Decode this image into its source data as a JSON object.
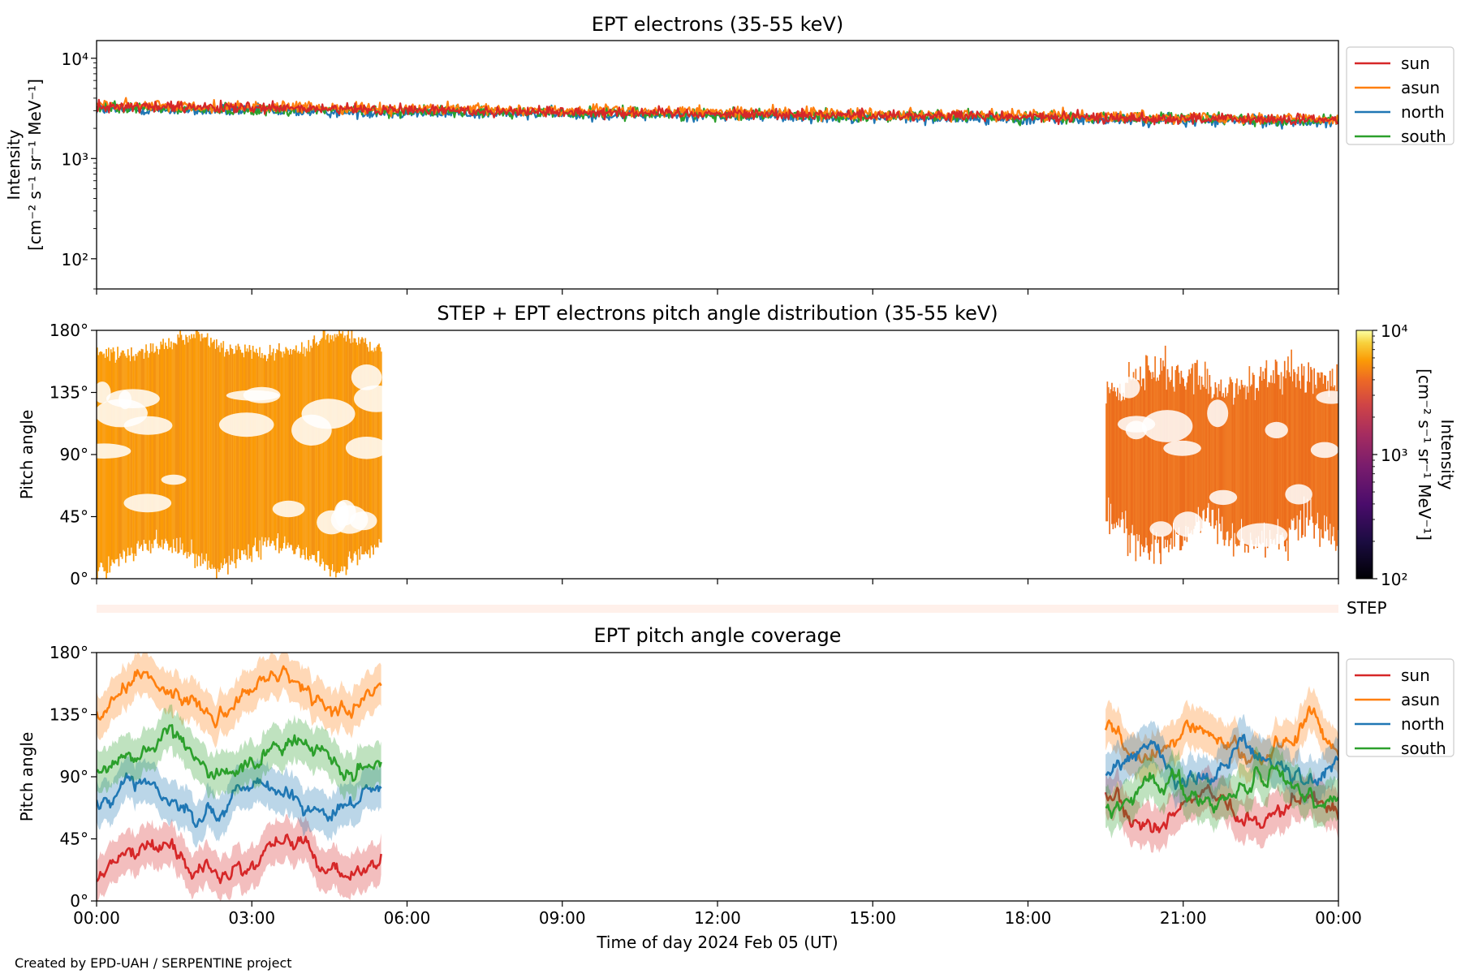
{
  "credit": "Created by EPD-UAH / SERPENTINE project",
  "chart_data": [
    {
      "type": "line",
      "title": "EPT electrons (35-55 keV)",
      "ylabel": "Intensity",
      "yunit": "[cm⁻² s⁻¹ sr⁻¹ MeV⁻¹]",
      "yscale": "log",
      "ylim": [
        50,
        15000
      ],
      "yticks": [
        "10⁴",
        "10³",
        "10²"
      ],
      "xlim": [
        "00:00",
        "24:00"
      ],
      "legend_position": "outside-right",
      "series": [
        {
          "name": "north",
          "color": "#1f77b4",
          "level_start": 3100,
          "level_end": 2300
        },
        {
          "name": "south",
          "color": "#2ca02c",
          "level_start": 3200,
          "level_end": 2400
        },
        {
          "name": "asun",
          "color": "#ff7f0e",
          "level_start": 3400,
          "level_end": 2500
        },
        {
          "name": "sun",
          "color": "#d62728",
          "level_start": 3300,
          "level_end": 2400
        }
      ],
      "legend": [
        "sun",
        "asun",
        "north",
        "south"
      ]
    },
    {
      "type": "heatmap",
      "title": "STEP + EPT electrons pitch angle distribution (35-55 keV)",
      "ylabel": "Pitch angle",
      "ylim": [
        0,
        180
      ],
      "yticks": [
        "180°",
        "135°",
        "90°",
        "45°",
        "0°"
      ],
      "xlim": [
        "00:00",
        "24:00"
      ],
      "data_intervals": [
        {
          "start": "00:00",
          "end": "05:30",
          "typical_intensity": 3500
        },
        {
          "start": "19:30",
          "end": "24:00",
          "typical_intensity": 2800
        }
      ],
      "colorbar": {
        "label": "Intensity",
        "unit": "[cm⁻² s⁻¹ sr⁻¹ MeV⁻¹]",
        "scale": "log",
        "range": [
          100,
          10000
        ],
        "ticks": [
          "10⁴",
          "10³",
          "10²"
        ],
        "colormap": "inferno"
      }
    },
    {
      "type": "heatmap",
      "label": "STEP",
      "xlim": [
        "00:00",
        "24:00"
      ]
    },
    {
      "type": "line",
      "title": "EPT pitch angle coverage",
      "ylabel": "Pitch angle",
      "ylim": [
        0,
        180
      ],
      "yticks": [
        "180°",
        "135°",
        "90°",
        "45°",
        "0°"
      ],
      "xlabel": "Time of day 2024 Feb 05 (UT)",
      "xticks": [
        "00:00",
        "03:00",
        "06:00",
        "09:00",
        "12:00",
        "15:00",
        "18:00",
        "21:00",
        "00:00"
      ],
      "data_intervals": [
        {
          "start": "00:00",
          "end": "05:30"
        },
        {
          "start": "19:30",
          "end": "24:00"
        }
      ],
      "shaded_band": "±15°",
      "legend_position": "outside-right",
      "series": [
        {
          "name": "sun",
          "color": "#d62728",
          "mean_interval1": 30,
          "mean_interval2": 65
        },
        {
          "name": "asun",
          "color": "#ff7f0e",
          "mean_interval1": 150,
          "mean_interval2": 115
        },
        {
          "name": "north",
          "color": "#1f77b4",
          "mean_interval1": 75,
          "mean_interval2": 100
        },
        {
          "name": "south",
          "color": "#2ca02c",
          "mean_interval1": 105,
          "mean_interval2": 80
        }
      ],
      "legend": [
        "sun",
        "asun",
        "north",
        "south"
      ]
    }
  ]
}
